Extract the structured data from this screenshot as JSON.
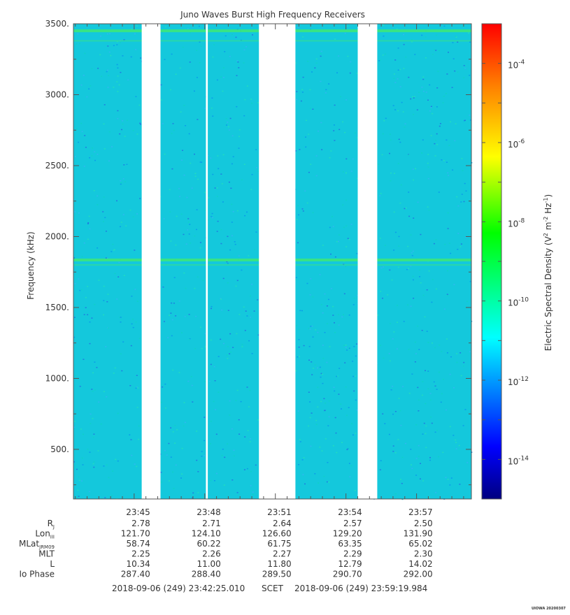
{
  "chart_data": {
    "type": "heatmap",
    "title": "Juno Waves Burst High Frequency Receivers",
    "ylabel": "Frequency (kHz)",
    "ylim": [
      150,
      3500
    ],
    "yticks": [
      {
        "v": 500,
        "label": "500."
      },
      {
        "v": 1000,
        "label": "1000."
      },
      {
        "v": 1500,
        "label": "1500."
      },
      {
        "v": 2000,
        "label": "2000."
      },
      {
        "v": 2500,
        "label": "2500."
      },
      {
        "v": 3000,
        "label": "3000."
      },
      {
        "v": 3500,
        "label": "3500."
      }
    ],
    "xlim_minutes": [
      1422.42,
      1439.33
    ],
    "xticks": [
      {
        "v": 1425,
        "label": "23:45"
      },
      {
        "v": 1428,
        "label": "23:48"
      },
      {
        "v": 1431,
        "label": "23:51"
      },
      {
        "v": 1434,
        "label": "23:54"
      },
      {
        "v": 1437,
        "label": "23:57"
      }
    ],
    "data_gaps_minutes": [
      [
        1425.32,
        1426.12
      ],
      [
        1428.05,
        1428.13
      ],
      [
        1430.3,
        1431.85
      ],
      [
        1434.5,
        1435.33
      ]
    ],
    "bands_khz": [
      3450,
      3380,
      1835,
      1800
    ],
    "colorbar": {
      "label": "Electric Spectral Density (V² m⁻² Hz⁻¹)",
      "label_main": "Electric Spectral Density (V",
      "label_sup1": "2",
      "label_mid": " m",
      "label_sup2": "-2",
      "label_mid2": " Hz",
      "label_sup3": "-1",
      "label_end": ")",
      "log_range": [
        -15.0,
        -3.0
      ],
      "ticks": [
        {
          "exp": -14,
          "base": "10",
          "sup": "-14"
        },
        {
          "exp": -12,
          "base": "10",
          "sup": "-12"
        },
        {
          "exp": -10,
          "base": "10",
          "sup": "-10"
        },
        {
          "exp": -8,
          "base": "10",
          "sup": "-8"
        },
        {
          "exp": -6,
          "base": "10",
          "sup": "-6"
        },
        {
          "exp": -4,
          "base": "10",
          "sup": "-4"
        }
      ]
    },
    "ephemeris": {
      "rows": [
        {
          "label": "R",
          "sub": "J",
          "values": [
            "2.78",
            "2.71",
            "2.64",
            "2.57",
            "2.50"
          ]
        },
        {
          "label": "Lon",
          "sub": "III",
          "values": [
            "121.70",
            "124.10",
            "126.60",
            "129.20",
            "131.90"
          ]
        },
        {
          "label": "MLat",
          "sub": "JRM09",
          "values": [
            "58.74",
            "60.22",
            "61.75",
            "63.35",
            "65.02"
          ]
        },
        {
          "label": "MLT",
          "sub": "",
          "values": [
            "2.25",
            "2.26",
            "2.27",
            "2.29",
            "2.30"
          ]
        },
        {
          "label": "L",
          "sub": "",
          "values": [
            "10.34",
            "11.00",
            "11.80",
            "12.79",
            "14.02"
          ]
        },
        {
          "label": "Io Phase",
          "sub": "",
          "values": [
            "287.40",
            "288.40",
            "289.50",
            "290.70",
            "292.00"
          ]
        }
      ]
    },
    "time_range": {
      "start": "2018-09-06 (249) 23:42:25.010",
      "label": "SCET",
      "end": "2018-09-06 (249) 23:59:19.984"
    },
    "credit": "UIOWA 20200307"
  },
  "colors": {
    "background_cyan": "#14c8dc",
    "band_green": "#3ce67c",
    "gap": "#ffffff"
  }
}
